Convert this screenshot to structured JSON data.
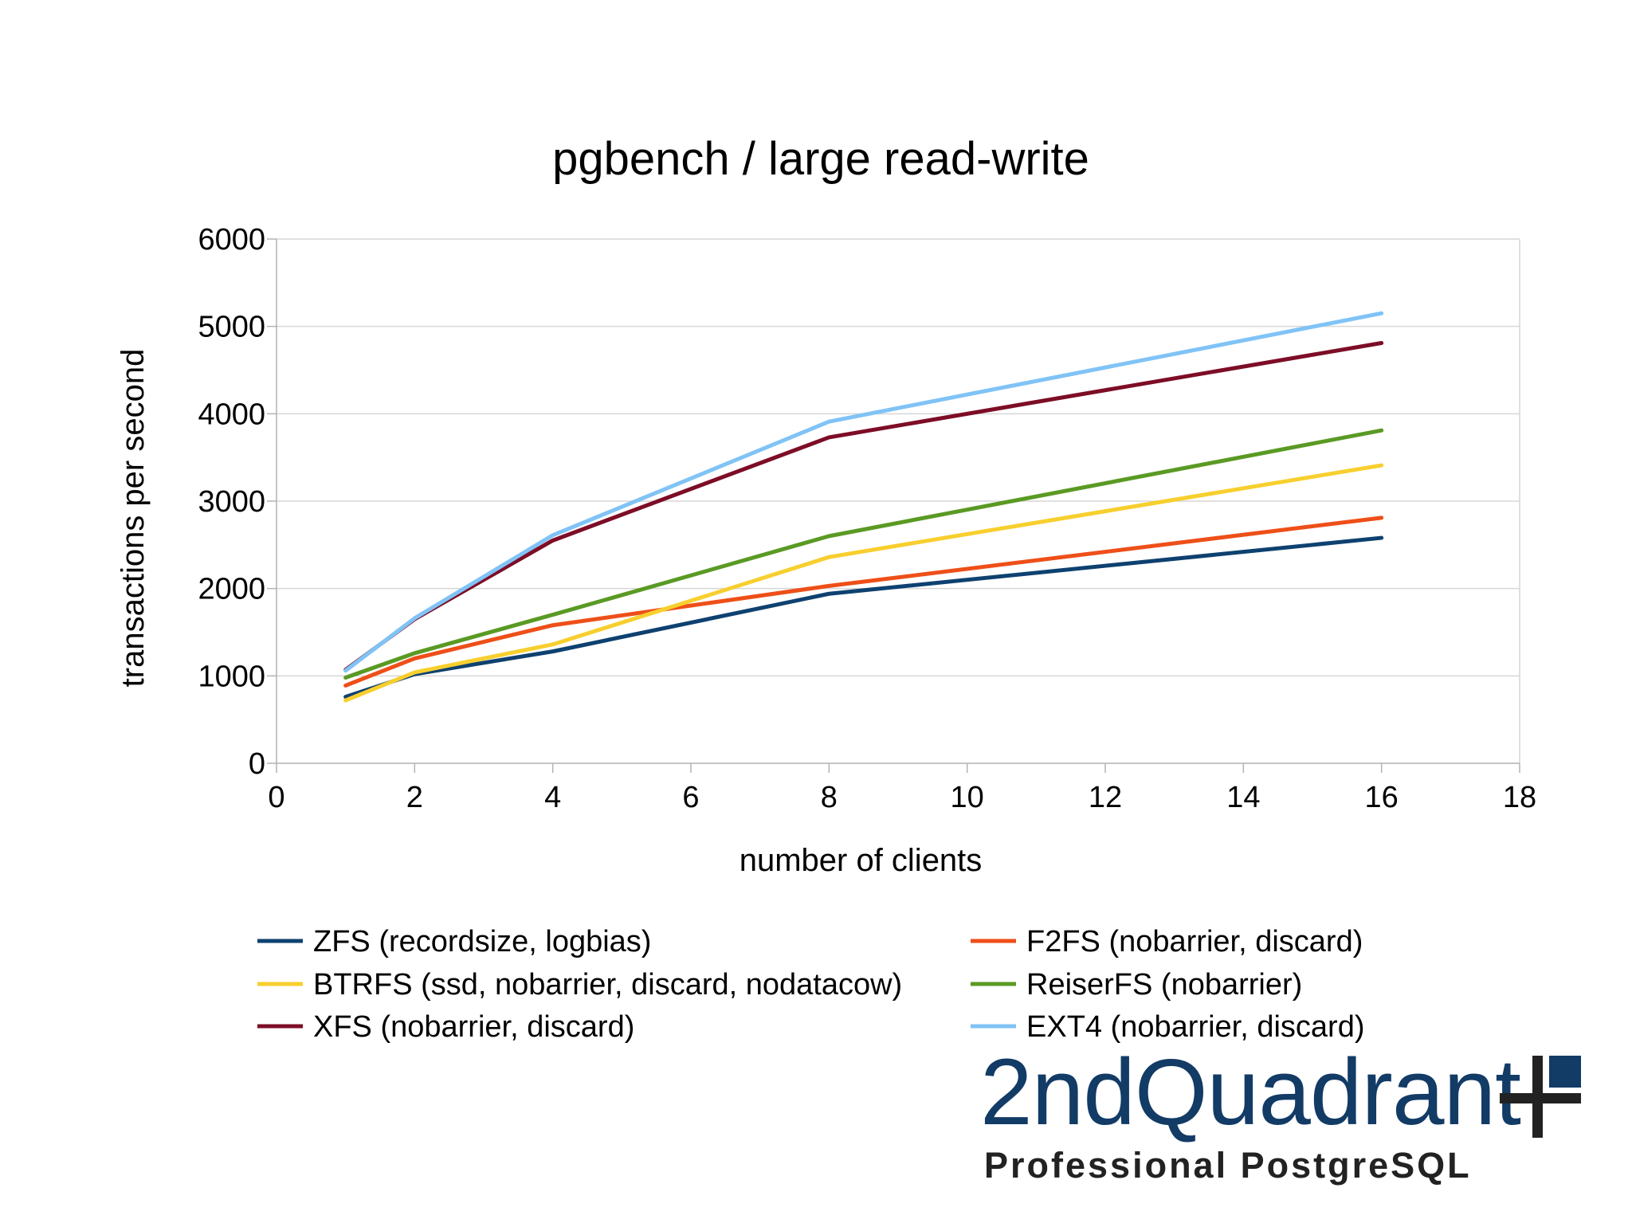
{
  "chart_data": {
    "type": "line",
    "title": "pgbench / large read-write",
    "xlabel": "number of clients",
    "ylabel": "transactions per second",
    "xlim": [
      0,
      18
    ],
    "ylim": [
      0,
      6000
    ],
    "xticks": [
      0,
      2,
      4,
      6,
      8,
      10,
      12,
      14,
      16,
      18
    ],
    "yticks": [
      0,
      1000,
      2000,
      3000,
      4000,
      5000,
      6000
    ],
    "x": [
      1,
      2,
      4,
      8,
      16
    ],
    "grid": true,
    "legend_position": "bottom",
    "series": [
      {
        "name": "ZFS (recordsize, logbias)",
        "color": "#0e4170",
        "values": [
          760,
          1020,
          1280,
          1940,
          2580
        ]
      },
      {
        "name": "F2FS (nobarrier, discard)",
        "color": "#ee4f18",
        "values": [
          890,
          1200,
          1580,
          2030,
          2810
        ]
      },
      {
        "name": "BTRFS (ssd, nobarrier, discard, nodatacow)",
        "color": "#f7cf2e",
        "values": [
          720,
          1040,
          1360,
          2360,
          3410
        ]
      },
      {
        "name": "ReiserFS (nobarrier)",
        "color": "#5a9a24",
        "values": [
          980,
          1260,
          1700,
          2600,
          3810
        ]
      },
      {
        "name": "XFS (nobarrier, discard)",
        "color": "#7d0d26",
        "values": [
          1070,
          1650,
          2550,
          3730,
          4810
        ]
      },
      {
        "name": "EXT4 (nobarrier, discard)",
        "color": "#80c3f6",
        "values": [
          1060,
          1660,
          2610,
          3910,
          5150
        ]
      }
    ]
  },
  "logo": {
    "name": "2ndQuadrant",
    "tagline": "Professional PostgreSQL",
    "color": "#123b66"
  }
}
